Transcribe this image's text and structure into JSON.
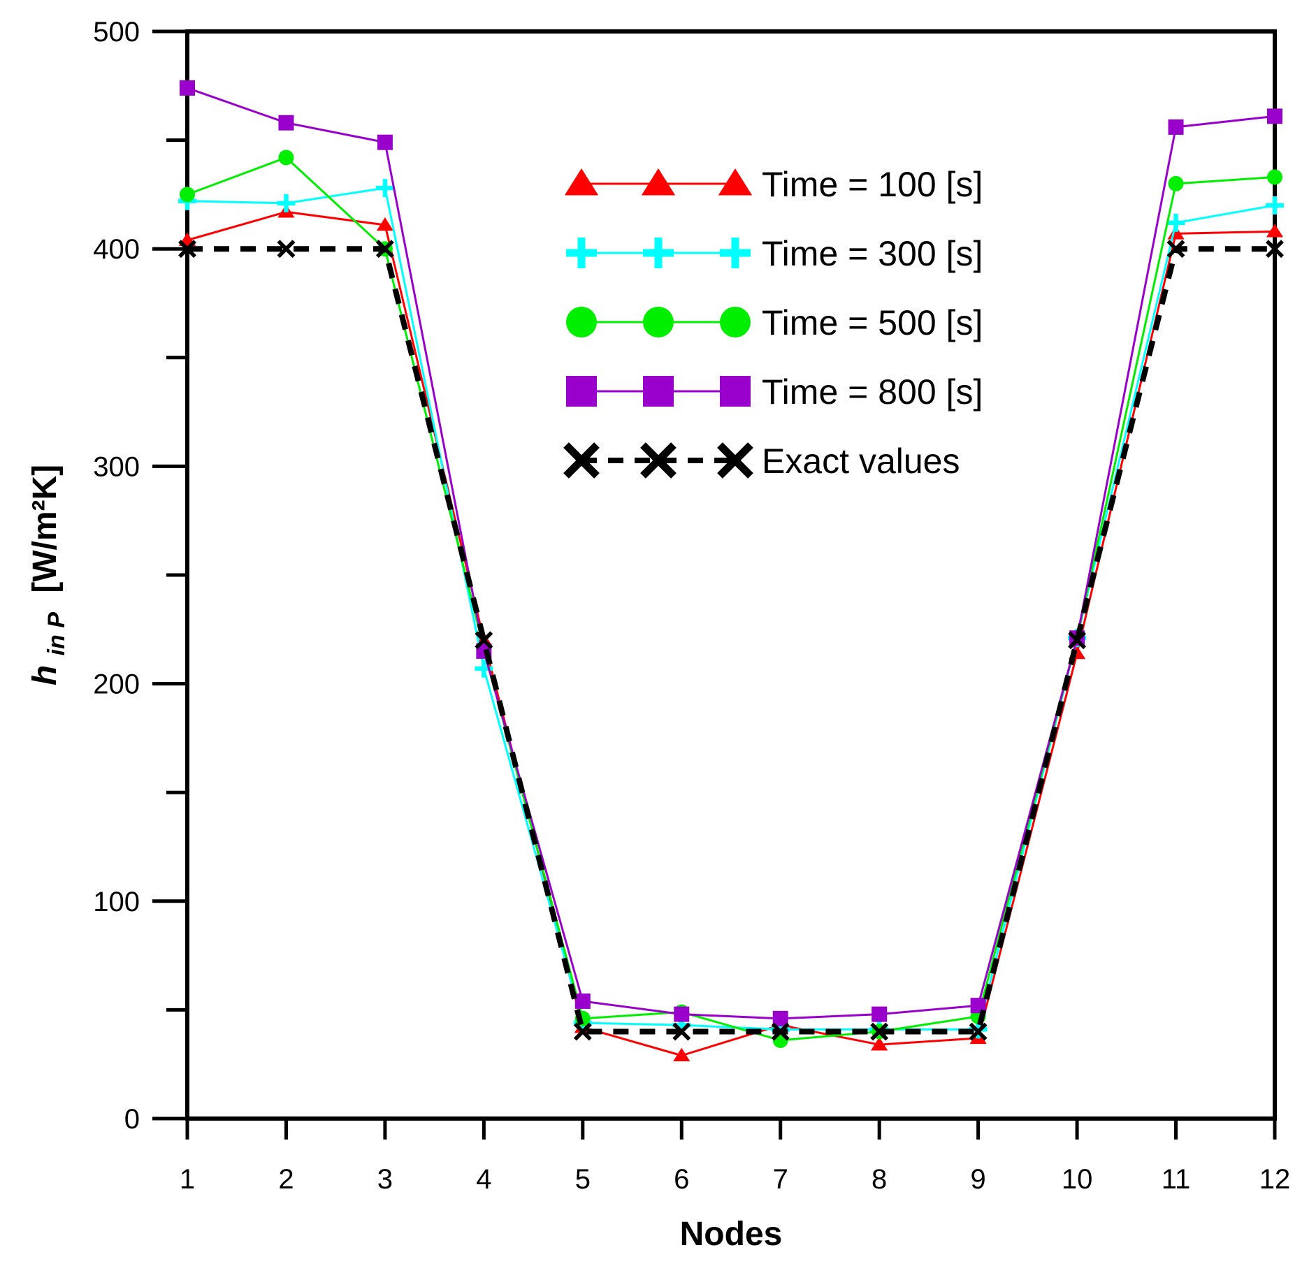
{
  "chart_data": {
    "type": "line",
    "title": "",
    "xlabel": "Nodes",
    "ylabel": {
      "main": "h",
      "sub": "in P",
      "units": "[W/m²K]"
    },
    "x": [
      1,
      2,
      3,
      4,
      5,
      6,
      7,
      8,
      9,
      10,
      11,
      12
    ],
    "xlim": [
      1,
      12
    ],
    "ylim": [
      0,
      500
    ],
    "y_ticks": [
      0,
      100,
      200,
      300,
      400,
      500
    ],
    "y_minor_step": 50,
    "grid": false,
    "legend_position": "top-center",
    "series": [
      {
        "name": "Time = 100 [s]",
        "color": "#ff0000",
        "marker": "triangle",
        "line_style": "solid",
        "values": [
          404,
          417,
          411,
          220,
          42,
          29,
          43,
          34,
          37,
          214,
          407,
          408
        ]
      },
      {
        "name": "Time = 300 [s]",
        "color": "#00ffff",
        "marker": "plus",
        "line_style": "solid",
        "values": [
          422,
          421,
          428,
          207,
          44,
          43,
          41,
          41,
          41,
          221,
          412,
          420
        ]
      },
      {
        "name": "Time = 500 [s]",
        "color": "#00ee00",
        "marker": "circle",
        "line_style": "solid",
        "values": [
          425,
          442,
          400,
          216,
          46,
          49,
          36,
          40,
          47,
          221,
          430,
          433
        ]
      },
      {
        "name": "Time = 800 [s]",
        "color": "#9900cc",
        "marker": "square",
        "line_style": "solid",
        "values": [
          474,
          458,
          449,
          215,
          54,
          48,
          46,
          48,
          52,
          221,
          456,
          461
        ]
      },
      {
        "name": "Exact values",
        "color": "#000000",
        "marker": "x",
        "line_style": "dashed",
        "values": [
          400,
          400,
          400,
          220,
          40,
          40,
          40,
          40,
          40,
          220,
          400,
          400
        ]
      }
    ]
  }
}
